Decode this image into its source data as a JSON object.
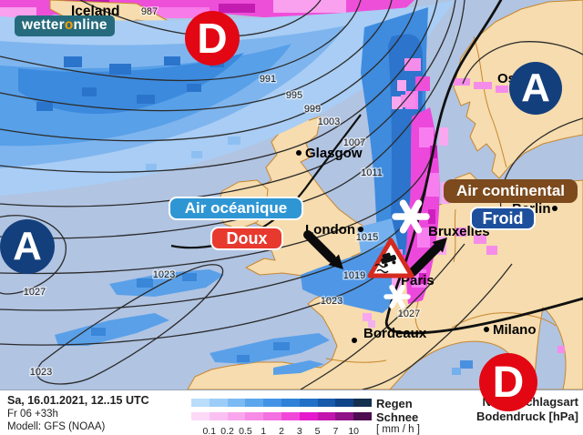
{
  "logo": {
    "pre": "wetter",
    "accent": "o",
    "post": "nline"
  },
  "map": {
    "region_label": "Iceland",
    "pressure_centers": [
      {
        "id": "low-north",
        "letter": "D"
      },
      {
        "id": "high-scandinavia",
        "letter": "A"
      },
      {
        "id": "high-atlantic",
        "letter": "A"
      },
      {
        "id": "low-south",
        "letter": "D"
      }
    ],
    "cities": [
      {
        "name": "Glasgow"
      },
      {
        "name": "London"
      },
      {
        "name": "Bruxelles"
      },
      {
        "name": "Berlin"
      },
      {
        "name": "Oslo"
      },
      {
        "name": "Paris"
      },
      {
        "name": "Bordeaux"
      },
      {
        "name": "Milano"
      }
    ],
    "isobar_labels": [
      "987",
      "991",
      "995",
      "999",
      "1003",
      "1007",
      "1011",
      "1015",
      "1019",
      "1023",
      "1023",
      "1023",
      "1027",
      "1027"
    ],
    "annotations": {
      "oceanic": "Air océanique",
      "mild": "Doux",
      "continental": "Air continental",
      "cold": "Froid"
    },
    "colors": {
      "sea": "#b1c4e2",
      "land": "#f6dcae",
      "coast": "#c8872f",
      "low_badge": "#e30613",
      "high_badge": "#143f7d",
      "oceanic_box": "#2f96d4",
      "mild_box": "#e8392e",
      "continental_box": "#7c4a1d",
      "cold_box": "#1e4f9c"
    }
  },
  "footer": {
    "datetime": "Sa, 16.01.2021, 12..15 UTC",
    "run": "Fr 06 +33h",
    "model": "Modell: GFS (NOAA)",
    "legend": {
      "rain_label": "Regen",
      "snow_label": "Schnee",
      "unit": "[ mm / h ]",
      "ticks": [
        "0.1",
        "0.2",
        "0.5",
        "1",
        "2",
        "3",
        "5",
        "7",
        "10"
      ],
      "rain_colors": [
        "#b9ddfb",
        "#9bcdf8",
        "#7cbaf3",
        "#5ca6ed",
        "#4293e5",
        "#2f82d8",
        "#2070c8",
        "#155aab",
        "#0e4487",
        "#13304f"
      ],
      "snow_colors": [
        "#fcd9f7",
        "#fbc0f2",
        "#f9a6ec",
        "#f78ce7",
        "#f471e1",
        "#f148da",
        "#e518cd",
        "#c214ae",
        "#8f1287",
        "#4d0d50"
      ]
    },
    "right_line1": "Niederschlagsart",
    "right_line2": "Bodendruck [hPa]"
  }
}
